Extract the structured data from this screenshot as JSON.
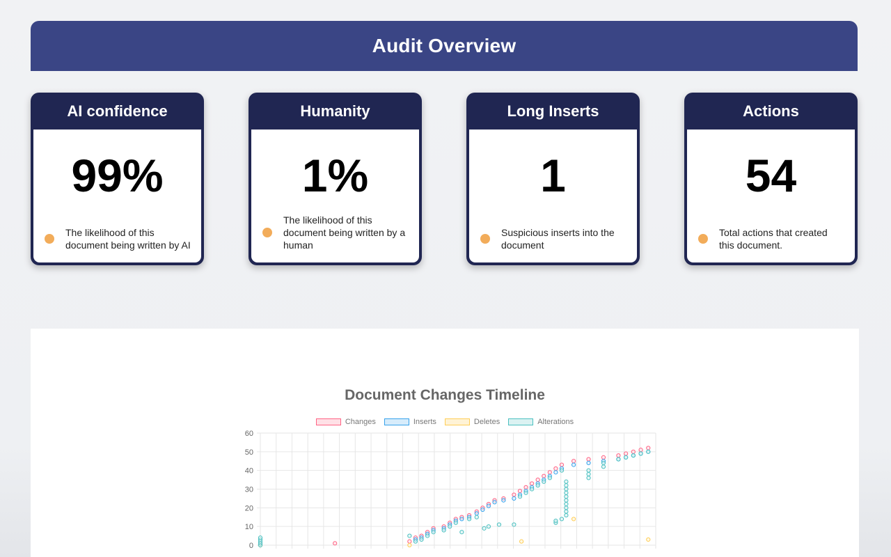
{
  "banner": {
    "title": "Audit Overview"
  },
  "cards": [
    {
      "title": "AI confidence",
      "value": "99%",
      "description": "The likelihood of this document being written by AI"
    },
    {
      "title": "Humanity",
      "value": "1%",
      "description": "The likelihood of this document being written by a human"
    },
    {
      "title": "Long Inserts",
      "value": "1",
      "description": "Suspicious inserts into the document"
    },
    {
      "title": "Actions",
      "value": "54",
      "description": "Total actions that created this document."
    }
  ],
  "colors": {
    "banner": "#3a4585",
    "card_header": "#202652",
    "dot": "#f2ac5a"
  },
  "chart_data": {
    "type": "scatter",
    "title": "Document Changes Timeline",
    "ylim": [
      0,
      60
    ],
    "yticks": [
      "0",
      "10",
      "20",
      "30",
      "40",
      "50",
      "60"
    ],
    "grid": true,
    "legend_position": "top",
    "series": [
      {
        "name": "Changes",
        "color": "#ff6384",
        "fill": "#ffe0e6",
        "points": [
          [
            0,
            1
          ],
          [
            5,
            1
          ],
          [
            10,
            2
          ],
          [
            10.4,
            4
          ],
          [
            10.8,
            5
          ],
          [
            11.2,
            7
          ],
          [
            11.6,
            9
          ],
          [
            12.3,
            10
          ],
          [
            12.7,
            12
          ],
          [
            13.1,
            14
          ],
          [
            13.5,
            15
          ],
          [
            14,
            16
          ],
          [
            14.5,
            18
          ],
          [
            14.9,
            20
          ],
          [
            15.3,
            22
          ],
          [
            15.7,
            24
          ],
          [
            16.3,
            25
          ],
          [
            17,
            27
          ],
          [
            17.4,
            29
          ],
          [
            17.8,
            31
          ],
          [
            18.2,
            33
          ],
          [
            18.6,
            35
          ],
          [
            19,
            37
          ],
          [
            19.4,
            39
          ],
          [
            19.8,
            41
          ],
          [
            20.2,
            43
          ],
          [
            21,
            45
          ],
          [
            22,
            46
          ],
          [
            23,
            47
          ],
          [
            24,
            48
          ],
          [
            24.5,
            49
          ],
          [
            25,
            50
          ],
          [
            25.5,
            51
          ],
          [
            26,
            52
          ]
        ]
      },
      {
        "name": "Inserts",
        "color": "#36a2eb",
        "fill": "#d7ecfb",
        "points": [
          [
            10.4,
            3
          ],
          [
            10.8,
            4
          ],
          [
            11.2,
            6
          ],
          [
            11.6,
            8
          ],
          [
            12.3,
            9
          ],
          [
            12.7,
            11
          ],
          [
            13.1,
            13
          ],
          [
            13.5,
            14
          ],
          [
            14,
            15
          ],
          [
            14.5,
            17
          ],
          [
            14.9,
            19
          ],
          [
            15.3,
            21
          ],
          [
            15.7,
            23
          ],
          [
            16.3,
            24
          ],
          [
            17,
            25
          ],
          [
            17.4,
            27
          ],
          [
            17.8,
            29
          ],
          [
            18.2,
            31
          ],
          [
            18.6,
            33
          ],
          [
            19,
            35
          ],
          [
            19.4,
            37
          ],
          [
            19.8,
            39
          ],
          [
            20.2,
            41
          ],
          [
            21,
            43
          ],
          [
            22,
            44
          ],
          [
            23,
            45
          ],
          [
            24,
            46
          ],
          [
            24.5,
            47
          ],
          [
            25,
            48
          ],
          [
            25.5,
            49
          ],
          [
            26,
            50
          ]
        ]
      },
      {
        "name": "Deletes",
        "color": "#ffce56",
        "fill": "#fff3d6",
        "points": [
          [
            0,
            0
          ],
          [
            10,
            0
          ],
          [
            17.5,
            2
          ],
          [
            21,
            14
          ],
          [
            26,
            3
          ]
        ]
      },
      {
        "name": "Alterations",
        "color": "#4bc0c0",
        "fill": "#dbf2f2",
        "points": [
          [
            0,
            0
          ],
          [
            0,
            1
          ],
          [
            0,
            2
          ],
          [
            0,
            3
          ],
          [
            0,
            4
          ],
          [
            10,
            5
          ],
          [
            10.4,
            2
          ],
          [
            10.8,
            3
          ],
          [
            11.2,
            5
          ],
          [
            11.6,
            7
          ],
          [
            12.3,
            8
          ],
          [
            12.7,
            10
          ],
          [
            13.1,
            12
          ],
          [
            13.5,
            7
          ],
          [
            14,
            14
          ],
          [
            14.5,
            15
          ],
          [
            15,
            9
          ],
          [
            15.3,
            10
          ],
          [
            16,
            11
          ],
          [
            17,
            11
          ],
          [
            17.4,
            26
          ],
          [
            17.8,
            28
          ],
          [
            18.2,
            30
          ],
          [
            18.6,
            32
          ],
          [
            19,
            34
          ],
          [
            19.4,
            36
          ],
          [
            19.8,
            12
          ],
          [
            19.8,
            13
          ],
          [
            20.2,
            14
          ],
          [
            20.2,
            40
          ],
          [
            20.5,
            16
          ],
          [
            20.5,
            18
          ],
          [
            20.5,
            20
          ],
          [
            20.5,
            22
          ],
          [
            20.5,
            24
          ],
          [
            20.5,
            26
          ],
          [
            20.5,
            28
          ],
          [
            20.5,
            30
          ],
          [
            20.5,
            32
          ],
          [
            20.5,
            34
          ],
          [
            22,
            36
          ],
          [
            22,
            38
          ],
          [
            22,
            40
          ],
          [
            23,
            42
          ],
          [
            23,
            44
          ],
          [
            24,
            46
          ],
          [
            24.5,
            47
          ],
          [
            25,
            48
          ],
          [
            25.5,
            49
          ],
          [
            26,
            50
          ]
        ]
      }
    ]
  }
}
